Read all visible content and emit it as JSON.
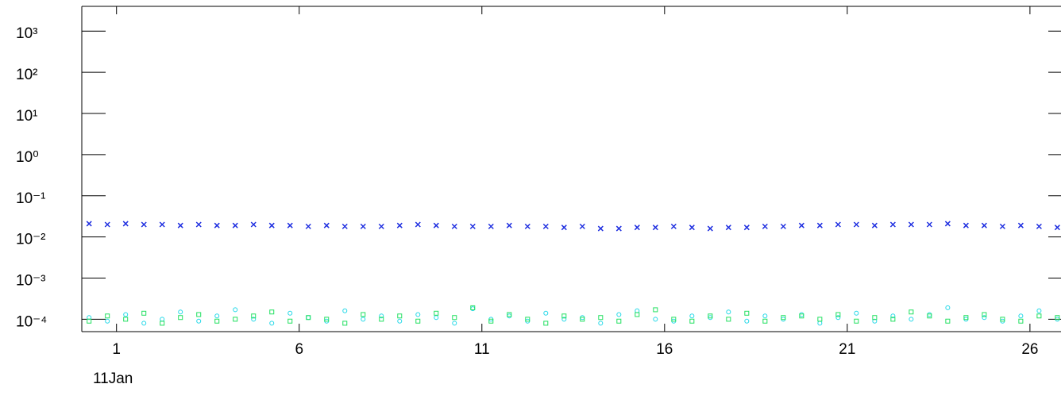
{
  "chart_data": {
    "type": "scatter",
    "log_y": true,
    "annotation": "11Jan",
    "xlim": [
      0.05,
      26.85
    ],
    "xticks": [
      1,
      6,
      11,
      16,
      21,
      26
    ],
    "ylim": [
      5e-05,
      4000
    ],
    "yticks": [
      {
        "value": 1000,
        "label": "10³"
      },
      {
        "value": 100,
        "label": "10²"
      },
      {
        "value": 10,
        "label": "10¹"
      },
      {
        "value": 1,
        "label": "10⁰"
      },
      {
        "value": 0.1,
        "label": "10⁻¹"
      },
      {
        "value": 0.01,
        "label": "10⁻²"
      },
      {
        "value": 0.001,
        "label": "10⁻³"
      },
      {
        "value": 0.0001,
        "label": "10⁻⁴"
      }
    ],
    "x": [
      0.25,
      0.75,
      1.25,
      1.75,
      2.25,
      2.75,
      3.25,
      3.75,
      4.25,
      4.75,
      5.25,
      5.75,
      6.25,
      6.75,
      7.25,
      7.75,
      8.25,
      8.75,
      9.25,
      9.75,
      10.25,
      10.75,
      11.25,
      11.75,
      12.25,
      12.75,
      13.25,
      13.75,
      14.25,
      14.75,
      15.25,
      15.75,
      16.25,
      16.75,
      17.25,
      17.75,
      18.25,
      18.75,
      19.25,
      19.75,
      20.25,
      20.75,
      21.25,
      21.75,
      22.25,
      22.75,
      23.25,
      23.75,
      24.25,
      24.75,
      25.25,
      25.75,
      26.25,
      26.75
    ],
    "series": [
      {
        "color": "#1f2fe0",
        "marker": "x",
        "values": [
          0.021,
          0.02,
          0.021,
          0.02,
          0.02,
          0.019,
          0.02,
          0.019,
          0.019,
          0.02,
          0.019,
          0.019,
          0.018,
          0.019,
          0.018,
          0.018,
          0.018,
          0.019,
          0.02,
          0.019,
          0.018,
          0.018,
          0.018,
          0.019,
          0.018,
          0.018,
          0.017,
          0.018,
          0.016,
          0.016,
          0.017,
          0.017,
          0.018,
          0.017,
          0.016,
          0.017,
          0.017,
          0.018,
          0.018,
          0.019,
          0.019,
          0.02,
          0.02,
          0.019,
          0.02,
          0.02,
          0.02,
          0.021,
          0.019,
          0.019,
          0.018,
          0.019,
          0.018,
          0.017
        ]
      },
      {
        "color": "#22d8e8",
        "marker": "circle",
        "values": [
          0.00011,
          9e-05,
          0.00013,
          8e-05,
          0.0001,
          0.00015,
          9e-05,
          0.00012,
          0.00017,
          0.0001,
          8e-05,
          0.00014,
          0.00011,
          9e-05,
          0.00016,
          0.0001,
          0.00012,
          9e-05,
          0.00013,
          0.00011,
          8e-05,
          0.00018,
          0.0001,
          0.00012,
          9e-05,
          0.00014,
          0.0001,
          0.00011,
          8e-05,
          0.00013,
          0.00016,
          0.0001,
          9e-05,
          0.00012,
          0.00011,
          0.00015,
          9e-05,
          0.00012,
          0.0001,
          0.00013,
          8e-05,
          0.00011,
          0.00014,
          9e-05,
          0.00012,
          0.0001,
          0.00013,
          0.00019,
          0.0001,
          0.00011,
          9e-05,
          0.00012,
          0.00016,
          0.0001
        ]
      },
      {
        "color": "#22e060",
        "marker": "square",
        "values": [
          9e-05,
          0.00012,
          0.0001,
          0.00014,
          8e-05,
          0.00011,
          0.00013,
          9e-05,
          0.0001,
          0.00012,
          0.00015,
          9e-05,
          0.00011,
          0.0001,
          8e-05,
          0.00013,
          0.0001,
          0.00012,
          9e-05,
          0.00014,
          0.00011,
          0.00019,
          9e-05,
          0.00013,
          0.0001,
          8e-05,
          0.00012,
          0.0001,
          0.00011,
          9e-05,
          0.00013,
          0.00017,
          0.0001,
          9e-05,
          0.00012,
          0.0001,
          0.00014,
          9e-05,
          0.00011,
          0.00012,
          0.0001,
          0.00013,
          9e-05,
          0.00011,
          0.0001,
          0.00015,
          0.00012,
          9e-05,
          0.00011,
          0.00013,
          0.0001,
          9e-05,
          0.00012,
          0.00011
        ]
      }
    ]
  }
}
